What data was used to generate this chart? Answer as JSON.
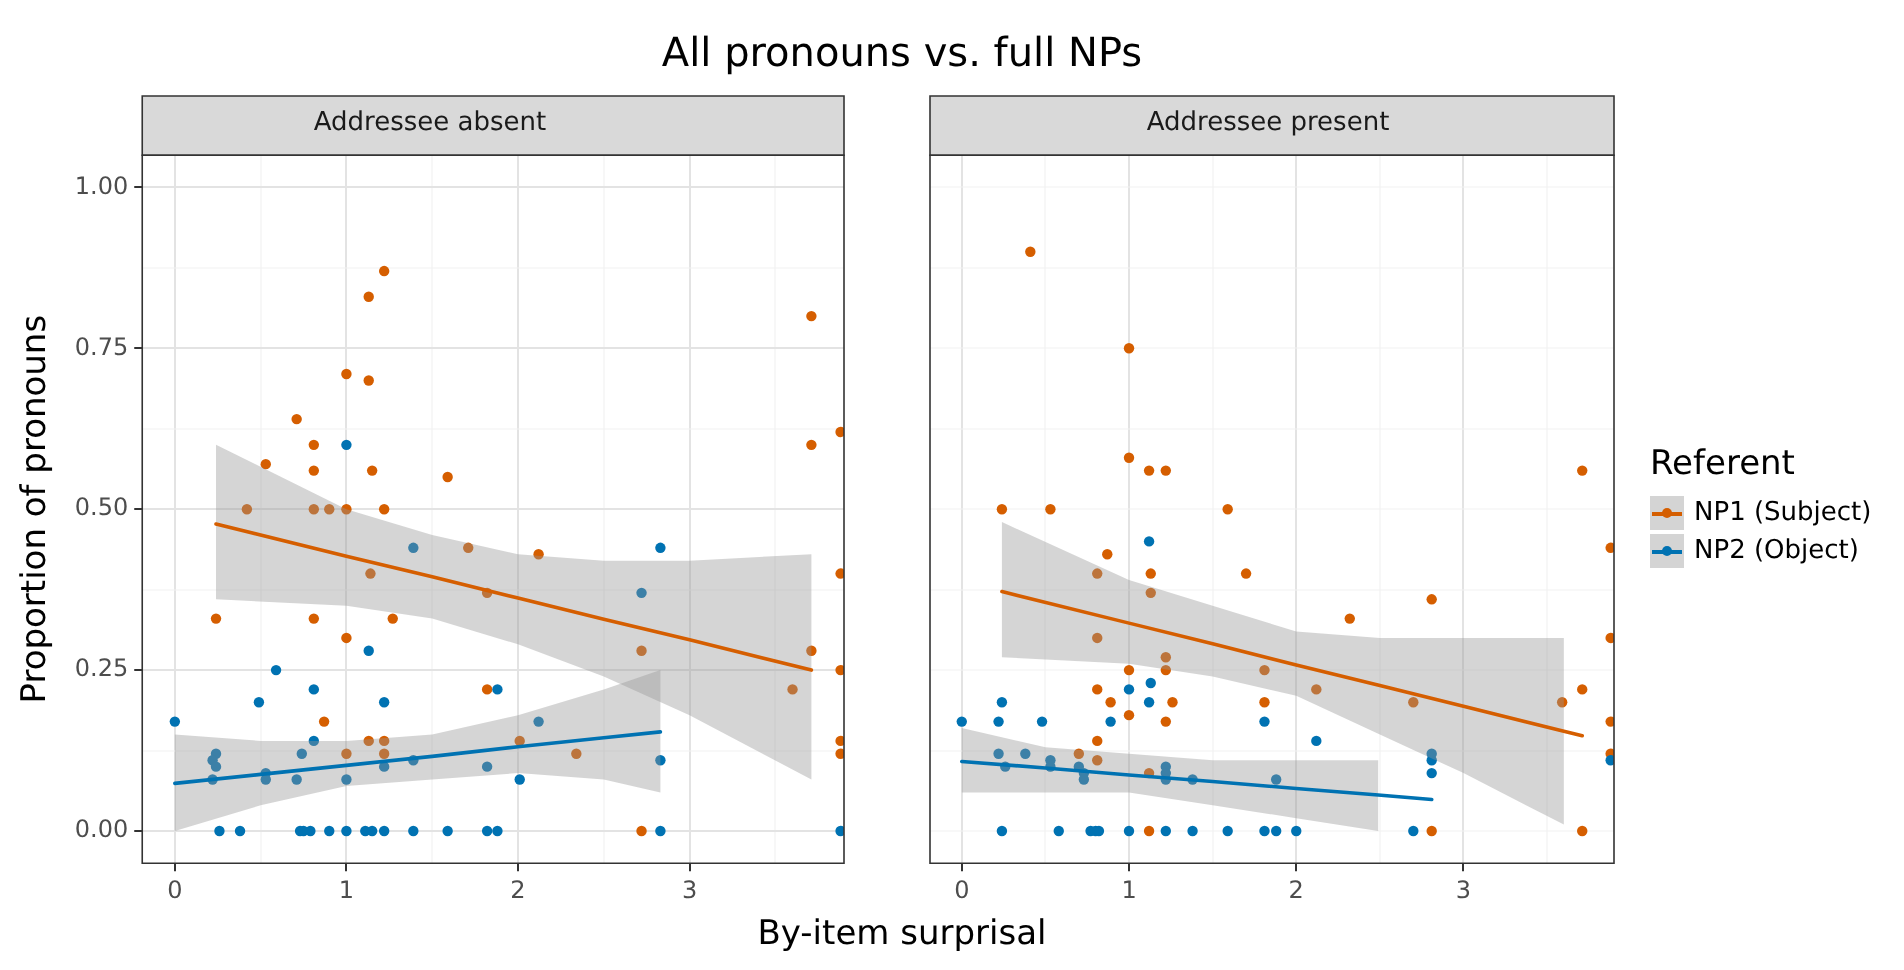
{
  "chart_data": [
    {
      "type": "scatter",
      "title": "All pronouns vs. full NPs",
      "subtitle": "Addressee absent",
      "xlabel": "By-item surprisal",
      "ylabel": "Proportion of pronouns",
      "legend_title": "Referent",
      "legend": "right",
      "grid": true,
      "xlim": [
        -0.19,
        3.9
      ],
      "xticks": [
        0,
        {
          "value": 0.5,
          "label": null
        },
        1,
        {
          "value": 1.5,
          "label": null
        },
        2,
        {
          "value": 2.5,
          "label": null
        },
        3,
        {
          "value": 3.5,
          "label": null
        }
      ],
      "ylim": [
        -0.05,
        1.05
      ],
      "yticks": [
        {
          "value": 0,
          "label": "0.00"
        },
        {
          "value": 0.125,
          "label": null
        },
        {
          "value": 0.25,
          "label": "0.25"
        },
        {
          "value": 0.375,
          "label": null
        },
        {
          "value": 0.5,
          "label": "0.50"
        },
        {
          "value": 0.625,
          "label": null
        },
        {
          "value": 0.75,
          "label": "0.75"
        },
        {
          "value": 0.875,
          "label": null
        },
        {
          "value": 1,
          "label": "1.00"
        }
      ],
      "series": [
        {
          "name": "NP1 (Subject)",
          "type": "scatter",
          "marker": "circle",
          "color": "#d55e00",
          "x": [
            1.22,
            1.13,
            1.0,
            1.13,
            0.71,
            0.81,
            0.53,
            0.81,
            1.15,
            1.59,
            0.42,
            0.81,
            0.9,
            1.0,
            1.22,
            1.71,
            2.12,
            3.71,
            3.71,
            3.88,
            1.14,
            1.82,
            0.24,
            0.81,
            1.27,
            1.0,
            2.72,
            3.71,
            3.88,
            3.88,
            1.82,
            3.6,
            0.87,
            1.13,
            1.22,
            1.0,
            1.22,
            2.01,
            2.34,
            2.72,
            3.88,
            3.88
          ],
          "values": [
            0.87,
            0.83,
            0.71,
            0.7,
            0.64,
            0.6,
            0.57,
            0.56,
            0.56,
            0.55,
            0.5,
            0.5,
            0.5,
            0.5,
            0.5,
            0.44,
            0.43,
            0.8,
            0.6,
            0.62,
            0.4,
            0.37,
            0.33,
            0.33,
            0.33,
            0.3,
            0.28,
            0.28,
            0.4,
            0.25,
            0.22,
            0.22,
            0.17,
            0.14,
            0.14,
            0.12,
            0.12,
            0.14,
            0.12,
            0,
            0.14,
            0.12
          ]
        },
        {
          "name": "NP2 (Object)",
          "type": "scatter",
          "marker": "circle",
          "color": "#0072b2",
          "x": [
            1.0,
            1.39,
            2.83,
            2.72,
            1.13,
            0.59,
            0.81,
            1.88,
            0.49,
            1.22,
            0,
            2.12,
            0.81,
            0.24,
            0.74,
            0.22,
            0.24,
            1.39,
            2.83,
            1.22,
            1.82,
            0.53,
            0.53,
            0.71,
            1.0,
            2.01,
            0.22,
            0.26,
            0.38,
            0.73,
            0.75,
            0.79,
            0.9,
            1.0,
            1.11,
            1.15,
            1.22,
            1.39,
            1.59,
            1.82,
            1.88,
            2.83,
            3.88
          ],
          "values": [
            0.6,
            0.44,
            0.44,
            0.37,
            0.28,
            0.25,
            0.22,
            0.22,
            0.2,
            0.2,
            0.17,
            0.17,
            0.14,
            0.12,
            0.12,
            0.11,
            0.1,
            0.11,
            0.11,
            0.1,
            0.1,
            0.09,
            0.08,
            0.08,
            0.08,
            0.08,
            0.08,
            0,
            0,
            0,
            0,
            0,
            0,
            0,
            0,
            0,
            0,
            0,
            0,
            0,
            0,
            0,
            0
          ]
        },
        {
          "type": "line",
          "color": "#d55e00",
          "x": [
            0.24,
            1.0,
            1.5,
            2.0,
            2.5,
            3.0,
            3.71
          ],
          "values": [
            0.477,
            0.427,
            0.395,
            0.362,
            0.329,
            0.297,
            0.25
          ],
          "lower": [
            0.36,
            0.35,
            0.33,
            0.29,
            0.24,
            0.18,
            0.08
          ],
          "upper": [
            0.6,
            0.5,
            0.46,
            0.43,
            0.42,
            0.42,
            0.43
          ]
        },
        {
          "type": "line",
          "color": "#0072b2",
          "x": [
            0,
            0.5,
            1.0,
            1.5,
            2.0,
            2.5,
            2.83
          ],
          "values": [
            0.074,
            0.088,
            0.102,
            0.116,
            0.131,
            0.145,
            0.154
          ],
          "lower": [
            0.0,
            0.04,
            0.07,
            0.08,
            0.09,
            0.08,
            0.06
          ],
          "upper": [
            0.15,
            0.14,
            0.14,
            0.15,
            0.18,
            0.22,
            0.25
          ]
        }
      ]
    },
    {
      "type": "scatter",
      "subtitle": "Addressee present",
      "grid": true,
      "tick_labels": "x",
      "xlim": [
        -0.19,
        3.9
      ],
      "xticks": [
        0,
        {
          "value": 0.5,
          "label": null
        },
        1,
        {
          "value": 1.5,
          "label": null
        },
        2,
        {
          "value": 2.5,
          "label": null
        },
        3,
        {
          "value": 3.5,
          "label": null
        }
      ],
      "ylim": [
        -0.05,
        1.05
      ],
      "yticks": [
        {
          "value": 0,
          "label": null
        },
        {
          "value": 0.125,
          "label": null
        },
        {
          "value": 0.25,
          "label": null
        },
        {
          "value": 0.375,
          "label": null
        },
        {
          "value": 0.5,
          "label": null
        },
        {
          "value": 0.625,
          "label": null
        },
        {
          "value": 0.75,
          "label": null
        },
        {
          "value": 0.875,
          "label": null
        },
        {
          "value": 1,
          "label": null
        }
      ],
      "series": [
        {
          "type": "scatter",
          "marker": "circle",
          "color": "#d55e00",
          "x": [
            0.41,
            1.0,
            1.0,
            1.12,
            1.22,
            0.24,
            0.53,
            1.59,
            3.71,
            3.88,
            0.87,
            0.81,
            1.13,
            1.7,
            1.13,
            2.81,
            0.81,
            3.88,
            2.32,
            1.22,
            1.0,
            1.22,
            1.81,
            0.81,
            2.12,
            3.71,
            0.89,
            1.26,
            1.81,
            2.7,
            3.59,
            1.0,
            1.22,
            3.88,
            0.81,
            0.7,
            3.88,
            0.81,
            1.12,
            1.12,
            2.81,
            3.71
          ],
          "values": [
            0.9,
            0.75,
            0.58,
            0.56,
            0.56,
            0.5,
            0.5,
            0.5,
            0.56,
            0.44,
            0.43,
            0.4,
            0.4,
            0.4,
            0.37,
            0.36,
            0.3,
            0.3,
            0.33,
            0.27,
            0.25,
            0.25,
            0.25,
            0.22,
            0.22,
            0.22,
            0.2,
            0.2,
            0.2,
            0.2,
            0.2,
            0.18,
            0.17,
            0.17,
            0.14,
            0.12,
            0.12,
            0.11,
            0.09,
            0,
            0,
            0
          ]
        },
        {
          "type": "scatter",
          "marker": "circle",
          "color": "#0072b2",
          "x": [
            1.12,
            1.0,
            1.13,
            0.24,
            1.12,
            0,
            0.22,
            0.48,
            1.81,
            0.89,
            2.12,
            0.22,
            0.38,
            2.81,
            2.81,
            0.26,
            0.53,
            0.53,
            0.7,
            0.73,
            0.73,
            1.22,
            1.22,
            1.22,
            1.38,
            1.88,
            2.81,
            3.88,
            0.24,
            0.58,
            0.77,
            0.8,
            0.82,
            1.0,
            1.22,
            1.38,
            1.59,
            1.81,
            1.88,
            2.0,
            2.7
          ],
          "values": [
            0.45,
            0.22,
            0.23,
            0.2,
            0.2,
            0.17,
            0.17,
            0.17,
            0.17,
            0.17,
            0.14,
            0.12,
            0.12,
            0.12,
            0.11,
            0.1,
            0.11,
            0.1,
            0.1,
            0.09,
            0.08,
            0.1,
            0.09,
            0.08,
            0.08,
            0.08,
            0.09,
            0.11,
            0,
            0,
            0,
            0,
            0,
            0,
            0,
            0,
            0,
            0,
            0,
            0,
            0
          ]
        },
        {
          "type": "line",
          "color": "#d55e00",
          "x": [
            0.24,
            1.0,
            1.5,
            2.0,
            2.5,
            3.0,
            3.6,
            3.71
          ],
          "values": [
            0.372,
            0.323,
            0.291,
            0.258,
            0.226,
            0.194,
            0.155,
            0.148
          ],
          "lower": [
            0.27,
            0.26,
            0.24,
            0.21,
            0.15,
            0.09,
            0.01,
            null
          ],
          "upper": [
            0.48,
            0.39,
            0.35,
            0.31,
            0.3,
            0.3,
            0.3,
            null
          ]
        },
        {
          "type": "line",
          "color": "#0072b2",
          "x": [
            0,
            0.5,
            1.0,
            1.5,
            2.0,
            2.49,
            2.81
          ],
          "values": [
            0.108,
            0.098,
            0.087,
            0.077,
            0.066,
            0.056,
            0.049
          ],
          "lower": [
            0.06,
            0.06,
            0.06,
            0.04,
            0.02,
            0.0,
            null
          ],
          "upper": [
            0.16,
            0.13,
            0.12,
            0.11,
            0.11,
            0.11,
            null
          ]
        }
      ]
    }
  ]
}
